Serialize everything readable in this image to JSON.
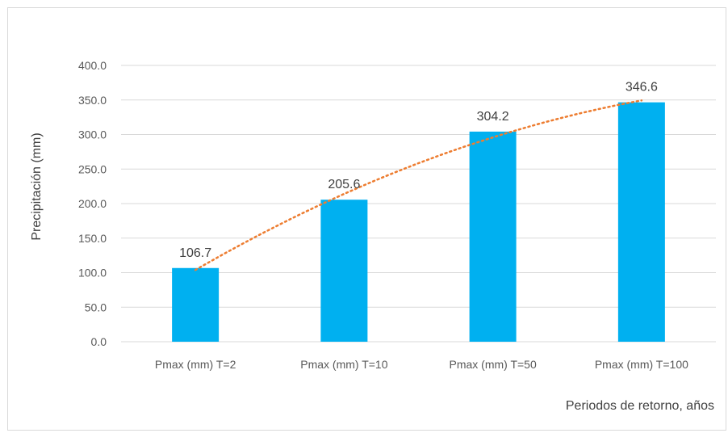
{
  "chart_data": {
    "type": "bar",
    "categories": [
      "Pmax (mm)  T=2",
      "Pmax (mm)  T=10",
      "Pmax (mm)  T=50",
      "Pmax (mm)  T=100"
    ],
    "values": [
      106.7,
      205.6,
      304.2,
      346.6
    ],
    "data_labels": [
      "106.7",
      "205.6",
      "304.2",
      "346.6"
    ],
    "xlabel": "Periodos de retorno, años",
    "ylabel": "Precipitación (mm)",
    "ylim": [
      0,
      400
    ],
    "yticks": [
      0,
      50,
      100,
      150,
      200,
      250,
      300,
      350,
      400
    ],
    "ytick_labels": [
      "0.0",
      "50.0",
      "100.0",
      "150.0",
      "200.0",
      "250.0",
      "300.0",
      "350.0",
      "400.0"
    ],
    "grid": true,
    "trendline": {
      "type": "polynomial",
      "style": "dotted"
    },
    "colors": {
      "bar": "#00b0f0",
      "trendline": "#ed7d31",
      "grid": "#d9d9d9"
    }
  }
}
